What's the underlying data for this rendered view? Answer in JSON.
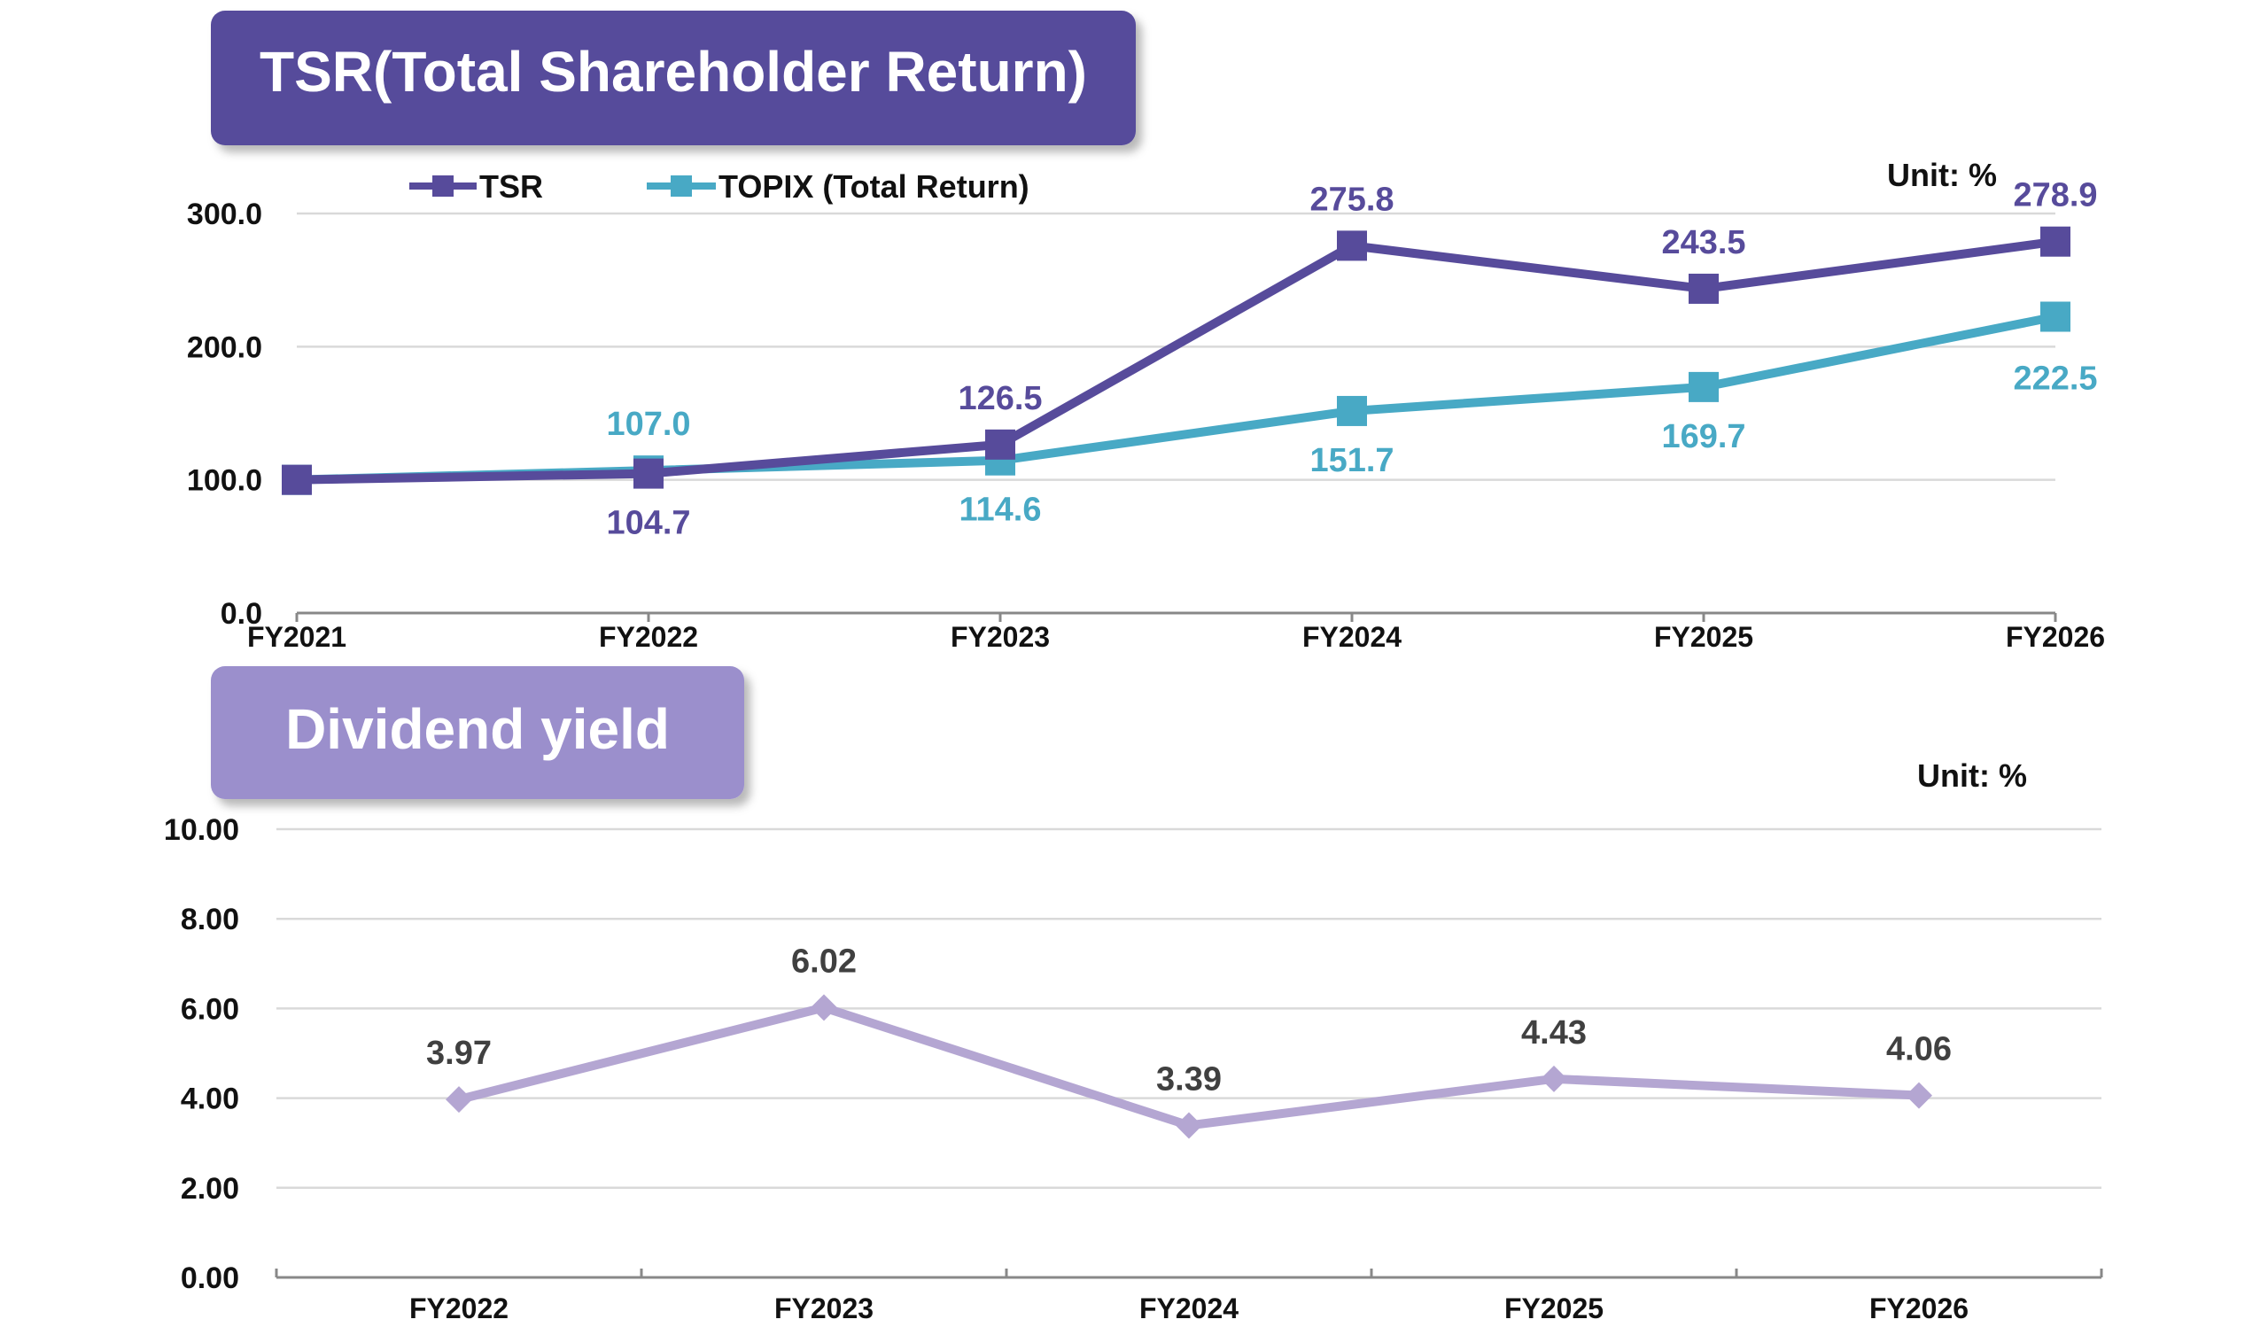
{
  "colors": {
    "tsr": "#574b9b",
    "topix": "#48a9c5",
    "dividend": "#b4a6d2",
    "title1_bg": "#574b9b",
    "title2_bg": "#9b8fcc",
    "axis_text": "#111111",
    "grid": "#d9d9d9",
    "label_dark": "#404040"
  },
  "chart_data": [
    {
      "type": "line",
      "title": "TSR(Total Shareholder Return)",
      "unit_label": "Unit: %",
      "categories": [
        "FY2021",
        "FY2022",
        "FY2023",
        "FY2024",
        "FY2025",
        "FY2026"
      ],
      "ylim": [
        0,
        300
      ],
      "yticks": [
        "0.0",
        "100.0",
        "200.0",
        "300.0"
      ],
      "grid": true,
      "legend": "top-left",
      "series": [
        {
          "name": "TSR",
          "values": [
            100,
            104.7,
            126.5,
            275.8,
            243.5,
            278.9
          ],
          "labels": [
            "",
            "104.7",
            "126.5",
            "275.8",
            "243.5",
            "278.9"
          ],
          "marker": "square"
        },
        {
          "name": "TOPIX (Total Return)",
          "values": [
            100,
            107.0,
            114.6,
            151.7,
            169.7,
            222.5
          ],
          "labels": [
            "",
            "107.0",
            "114.6",
            "151.7",
            "169.7",
            "222.5"
          ],
          "marker": "square"
        }
      ]
    },
    {
      "type": "line",
      "title": "Dividend yield",
      "unit_label": "Unit: %",
      "categories": [
        "FY2022",
        "FY2023",
        "FY2024",
        "FY2025",
        "FY2026"
      ],
      "ylim": [
        0,
        10
      ],
      "yticks": [
        "0.00",
        "2.00",
        "4.00",
        "6.00",
        "8.00",
        "10.00"
      ],
      "grid": true,
      "series": [
        {
          "values": [
            3.97,
            6.02,
            3.39,
            4.43,
            4.06
          ],
          "labels": [
            "3.97",
            "6.02",
            "3.39",
            "4.43",
            "4.06"
          ],
          "marker": "diamond"
        }
      ]
    }
  ]
}
